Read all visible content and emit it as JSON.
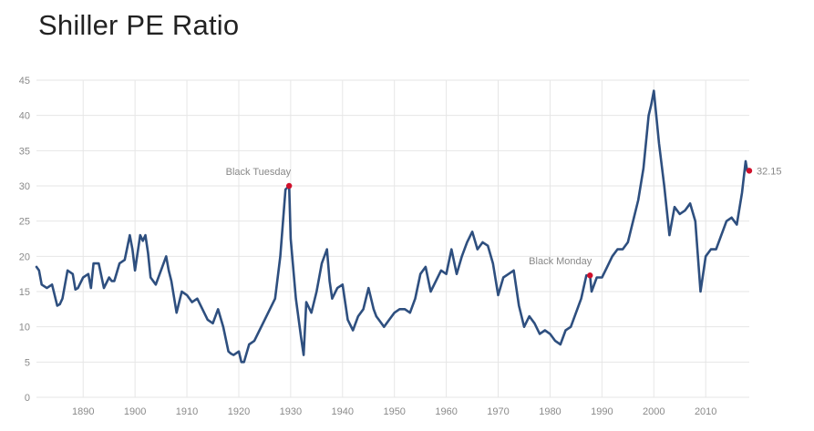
{
  "title": "Shiller PE Ratio",
  "chart_data": {
    "type": "line",
    "title": "Shiller PE Ratio",
    "xlabel": "",
    "ylabel": "",
    "xlim": [
      1881,
      2018.4
    ],
    "ylim": [
      0,
      45
    ],
    "x_ticks": [
      1890,
      1900,
      1910,
      1920,
      1930,
      1940,
      1950,
      1960,
      1970,
      1980,
      1990,
      2000,
      2010
    ],
    "y_ticks": [
      0,
      5,
      10,
      15,
      20,
      25,
      30,
      35,
      40,
      45
    ],
    "grid": true,
    "colors": {
      "line": "#2e4f7f",
      "marker": "#d0102b",
      "grid": "#e6e6e6"
    },
    "series": [
      {
        "x": [
          1881,
          1881.5,
          1882,
          1883,
          1884,
          1885,
          1885.5,
          1886,
          1887,
          1888,
          1888.5,
          1889,
          1890,
          1891,
          1891.5,
          1892,
          1893,
          1894,
          1895,
          1895.5,
          1896,
          1897,
          1898,
          1899,
          1899.5,
          1900,
          1901,
          1901.5,
          1902,
          1902.5,
          1903,
          1904,
          1905,
          1906,
          1906.5,
          1907,
          1908,
          1909,
          1910,
          1911,
          1912,
          1913,
          1914,
          1915,
          1916,
          1917,
          1918,
          1918.5,
          1919,
          1920,
          1920.5,
          1921,
          1922,
          1923,
          1924,
          1925,
          1926,
          1927,
          1928,
          1929,
          1929.7,
          1930,
          1931,
          1932,
          1932.5,
          1933,
          1934,
          1935,
          1936,
          1937,
          1937.5,
          1938,
          1939,
          1940,
          1941,
          1942,
          1943,
          1944,
          1945,
          1946,
          1946.5,
          1947,
          1948,
          1949,
          1950,
          1951,
          1952,
          1953,
          1954,
          1955,
          1956,
          1957,
          1958,
          1959,
          1960,
          1961,
          1962,
          1963,
          1964,
          1965,
          1966,
          1967,
          1968,
          1969,
          1970,
          1971,
          1972,
          1973,
          1974,
          1975,
          1976,
          1977,
          1978,
          1979,
          1980,
          1981,
          1982,
          1983,
          1984,
          1985,
          1986,
          1987,
          1987.7,
          1988,
          1989,
          1990,
          1991,
          1992,
          1993,
          1994,
          1995,
          1996,
          1997,
          1998,
          1999,
          1999.5,
          2000,
          2001,
          2002,
          2003,
          2004,
          2005,
          2006,
          2007,
          2008,
          2009,
          2010,
          2011,
          2012,
          2013,
          2014,
          2015,
          2016,
          2017,
          2017.7,
          2018
        ],
        "values": [
          18.5,
          18,
          16,
          15.5,
          16,
          13,
          13.2,
          14,
          18,
          17.5,
          15.3,
          15.5,
          17,
          17.5,
          15.5,
          19,
          19,
          15.5,
          17,
          16.5,
          16.5,
          19,
          19.5,
          23,
          21,
          18,
          23,
          22.2,
          23,
          20.5,
          17,
          16,
          18,
          20,
          18,
          16.5,
          12,
          15,
          14.5,
          13.5,
          14,
          12.5,
          11,
          10.5,
          12.5,
          10,
          6.5,
          6.2,
          6,
          6.5,
          5,
          5,
          7.5,
          8,
          9.5,
          11,
          12.5,
          14,
          20,
          29.5,
          30,
          22.5,
          14,
          8.5,
          6,
          13.5,
          12,
          15,
          19,
          21,
          16.5,
          14,
          15.5,
          16,
          11,
          9.5,
          11.5,
          12.5,
          15.5,
          12.5,
          11.5,
          11,
          10,
          11,
          12,
          12.5,
          12.5,
          12,
          14,
          17.5,
          18.5,
          15,
          16.5,
          18,
          17.5,
          21,
          17.5,
          20,
          22,
          23.5,
          21,
          22,
          21.5,
          19,
          14.5,
          17,
          17.5,
          18,
          13,
          10,
          11.5,
          10.5,
          9,
          9.5,
          9,
          8,
          7.5,
          9.5,
          10,
          12,
          14,
          17.3,
          17.3,
          15,
          17,
          17,
          18.5,
          20,
          21,
          21,
          22,
          25,
          28,
          32.5,
          40,
          41.5,
          43.5,
          36,
          30,
          23,
          27,
          26,
          26.5,
          27.5,
          25,
          15,
          20,
          21,
          21,
          23,
          25,
          25.5,
          24.5,
          29,
          33.5,
          32.15
        ],
        "latest": {
          "x": 2018.4,
          "y": 32.15
        }
      }
    ],
    "annotations": [
      {
        "label": "Black Tuesday",
        "x": 1929.7,
        "y": 30
      },
      {
        "label": "Black Monday",
        "x": 1987.7,
        "y": 17.3
      }
    ],
    "latest_label": "32.15"
  }
}
